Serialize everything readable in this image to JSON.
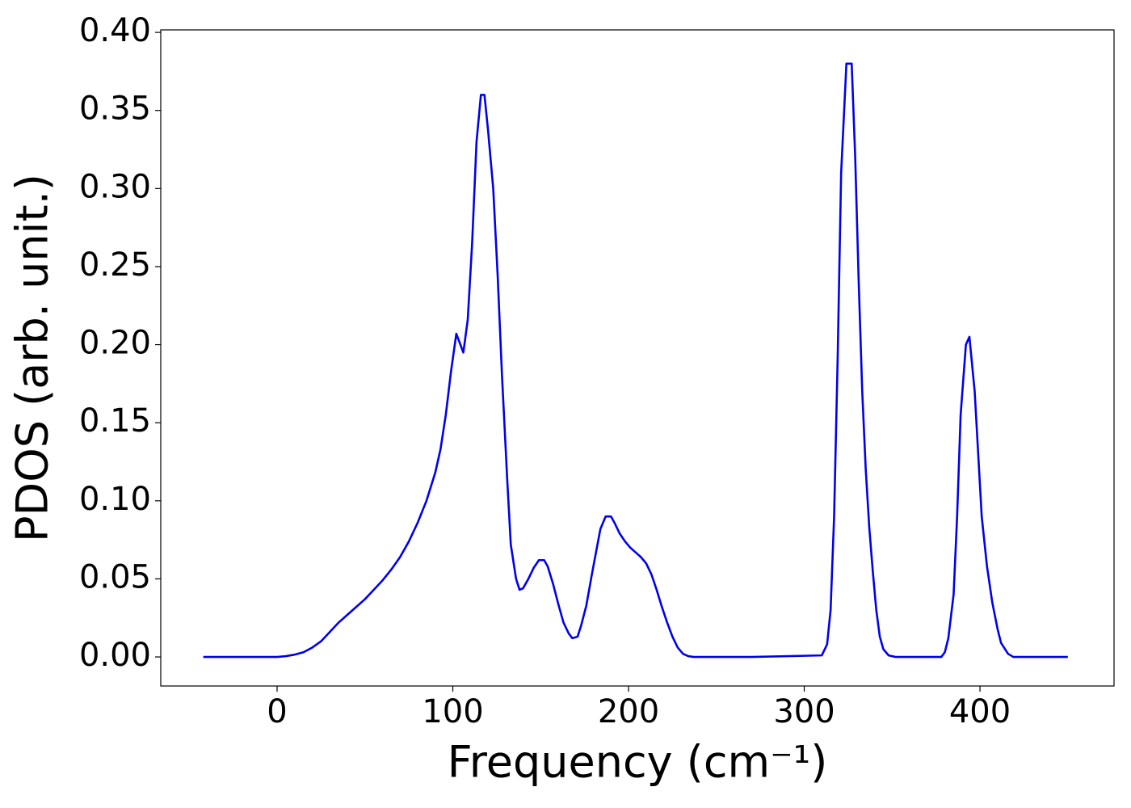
{
  "chart_data": {
    "type": "line",
    "x_label": "Frequency (cm⁻¹)",
    "y_label": "PDOS (arb. unit.)",
    "x": [
      -42,
      -20,
      0,
      5,
      10,
      15,
      20,
      25,
      30,
      35,
      40,
      45,
      50,
      55,
      60,
      65,
      70,
      75,
      80,
      85,
      90,
      93,
      96,
      99,
      102,
      106,
      108.5,
      111,
      113.5,
      116,
      118,
      120,
      123,
      125.5,
      128,
      131,
      133,
      136,
      138,
      140,
      143,
      146,
      149,
      152,
      154,
      157,
      160,
      163,
      166,
      168,
      171,
      173,
      176,
      179,
      182,
      184,
      187,
      190,
      192,
      195,
      198,
      201,
      204,
      207,
      210,
      213,
      216,
      219,
      222,
      225,
      228,
      231,
      234,
      237,
      270,
      310,
      313,
      315,
      317,
      319,
      321,
      324,
      327,
      329,
      331,
      333,
      335,
      337,
      339,
      341,
      343,
      345,
      348,
      352,
      378,
      380,
      382,
      385,
      387,
      389,
      392,
      394,
      397,
      399,
      401,
      404,
      407,
      410,
      412,
      416,
      419,
      450
    ],
    "series": [
      {
        "name": "PDOS",
        "color": "#0000ee",
        "values": [
          0,
          0,
          0,
          0.0005,
          0.0015,
          0.003,
          0.006,
          0.01,
          0.016,
          0.022,
          0.027,
          0.032,
          0.037,
          0.043,
          0.049,
          0.056,
          0.064,
          0.074,
          0.086,
          0.1,
          0.118,
          0.133,
          0.155,
          0.183,
          0.207,
          0.195,
          0.216,
          0.265,
          0.33,
          0.36,
          0.36,
          0.338,
          0.3,
          0.245,
          0.18,
          0.113,
          0.072,
          0.05,
          0.043,
          0.044,
          0.05,
          0.057,
          0.062,
          0.062,
          0.058,
          0.047,
          0.034,
          0.022,
          0.015,
          0.012,
          0.013,
          0.02,
          0.033,
          0.052,
          0.07,
          0.082,
          0.09,
          0.09,
          0.086,
          0.079,
          0.074,
          0.07,
          0.067,
          0.064,
          0.06,
          0.053,
          0.043,
          0.032,
          0.022,
          0.013,
          0.006,
          0.002,
          0.0005,
          0,
          0,
          0.001,
          0.008,
          0.03,
          0.09,
          0.19,
          0.31,
          0.38,
          0.38,
          0.32,
          0.24,
          0.17,
          0.12,
          0.083,
          0.055,
          0.03,
          0.013,
          0.005,
          0.001,
          0,
          0,
          0.003,
          0.012,
          0.04,
          0.09,
          0.155,
          0.2,
          0.205,
          0.17,
          0.13,
          0.09,
          0.058,
          0.035,
          0.018,
          0.009,
          0.002,
          0,
          0
        ]
      }
    ],
    "xlim": [
      -66.2,
      476.3
    ],
    "ylim": [
      -0.0186,
      0.4016
    ],
    "xticks": [
      0,
      100,
      200,
      300,
      400
    ],
    "yticks": [
      {
        "value": 0,
        "label": "0.00"
      },
      0.05,
      {
        "value": 0.1,
        "label": "0.10"
      },
      0.15,
      {
        "value": 0.2,
        "label": "0.20"
      },
      0.25,
      {
        "value": 0.3,
        "label": "0.30"
      },
      0.35,
      {
        "value": 0.4,
        "label": "0.40"
      }
    ],
    "grid": false
  }
}
